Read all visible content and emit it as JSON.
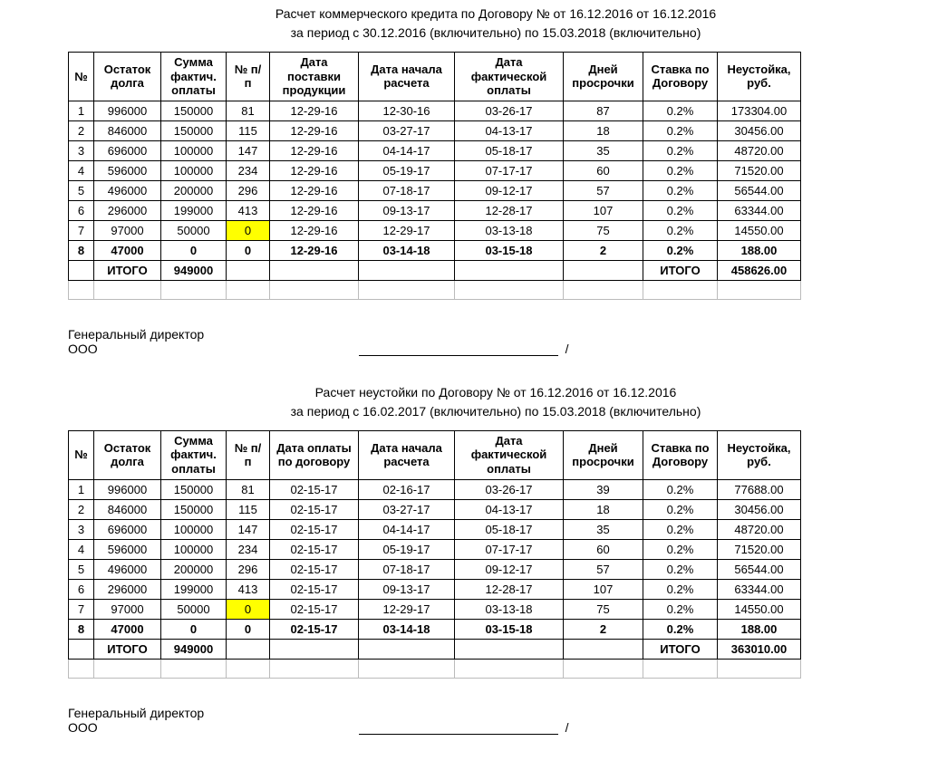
{
  "section1": {
    "title1": "Расчет коммерческого кредита по Договору № от 16.12.2016 от 16.12.2016",
    "title2": "за период с 30.12.2016 (включительно) по 15.03.2018 (включительно)",
    "headers": {
      "num": "№",
      "ostatok": "Остаток долга",
      "summa": "Сумма фактич. оплаты",
      "npp": "№ п/п",
      "date_post": "Дата поставки продукции",
      "date_nach": "Дата начала расчета",
      "date_fact": "Дата фактической оплаты",
      "days": "Дней просрочки",
      "rate": "Ставка по Договору",
      "penalty": "Неустойка, руб."
    },
    "rows": [
      {
        "n": "1",
        "ost": "996000",
        "sum": "150000",
        "npp": "81",
        "d1": "12-29-16",
        "d2": "12-30-16",
        "d3": "03-26-17",
        "days": "87",
        "rate": "0.2%",
        "pen": "173304.00"
      },
      {
        "n": "2",
        "ost": "846000",
        "sum": "150000",
        "npp": "115",
        "d1": "12-29-16",
        "d2": "03-27-17",
        "d3": "04-13-17",
        "days": "18",
        "rate": "0.2%",
        "pen": "30456.00"
      },
      {
        "n": "3",
        "ost": "696000",
        "sum": "100000",
        "npp": "147",
        "d1": "12-29-16",
        "d2": "04-14-17",
        "d3": "05-18-17",
        "days": "35",
        "rate": "0.2%",
        "pen": "48720.00"
      },
      {
        "n": "4",
        "ost": "596000",
        "sum": "100000",
        "npp": "234",
        "d1": "12-29-16",
        "d2": "05-19-17",
        "d3": "07-17-17",
        "days": "60",
        "rate": "0.2%",
        "pen": "71520.00"
      },
      {
        "n": "5",
        "ost": "496000",
        "sum": "200000",
        "npp": "296",
        "d1": "12-29-16",
        "d2": "07-18-17",
        "d3": "09-12-17",
        "days": "57",
        "rate": "0.2%",
        "pen": "56544.00"
      },
      {
        "n": "6",
        "ost": "296000",
        "sum": "199000",
        "npp": "413",
        "d1": "12-29-16",
        "d2": "09-13-17",
        "d3": "12-28-17",
        "days": "107",
        "rate": "0.2%",
        "pen": "63344.00"
      },
      {
        "n": "7",
        "ost": "97000",
        "sum": "50000",
        "npp": "0",
        "d1": "12-29-16",
        "d2": "12-29-17",
        "d3": "03-13-18",
        "days": "75",
        "rate": "0.2%",
        "pen": "14550.00",
        "hl": true
      }
    ],
    "boldrow": {
      "n": "8",
      "ost": "47000",
      "sum": "0",
      "npp": "0",
      "d1": "12-29-16",
      "d2": "03-14-18",
      "d3": "03-15-18",
      "days": "2",
      "rate": "0.2%",
      "pen": "188.00"
    },
    "itogo_label": "ИТОГО",
    "itogo_sum": "949000",
    "itogo_label2": "ИТОГО",
    "itogo_pen": "458626.00"
  },
  "sign": {
    "line1": "Генеральный директор",
    "line2": "ООО",
    "slash": "/"
  },
  "section2": {
    "title1": "Расчет неустойки по Договору № от 16.12.2016 от 16.12.2016",
    "title2": "за период с 16.02.2017 (включительно) по 15.03.2018 (включительно)",
    "headers": {
      "num": "№",
      "ostatok": "Остаток долга",
      "summa": "Сумма фактич. оплаты",
      "npp": "№ п/п",
      "date_post": "Дата оплаты по договору",
      "date_nach": "Дата начала расчета",
      "date_fact": "Дата фактической оплаты",
      "days": "Дней просрочки",
      "rate": "Ставка по Договору",
      "penalty": "Неустойка, руб."
    },
    "rows": [
      {
        "n": "1",
        "ost": "996000",
        "sum": "150000",
        "npp": "81",
        "d1": "02-15-17",
        "d2": "02-16-17",
        "d3": "03-26-17",
        "days": "39",
        "rate": "0.2%",
        "pen": "77688.00"
      },
      {
        "n": "2",
        "ost": "846000",
        "sum": "150000",
        "npp": "115",
        "d1": "02-15-17",
        "d2": "03-27-17",
        "d3": "04-13-17",
        "days": "18",
        "rate": "0.2%",
        "pen": "30456.00"
      },
      {
        "n": "3",
        "ost": "696000",
        "sum": "100000",
        "npp": "147",
        "d1": "02-15-17",
        "d2": "04-14-17",
        "d3": "05-18-17",
        "days": "35",
        "rate": "0.2%",
        "pen": "48720.00"
      },
      {
        "n": "4",
        "ost": "596000",
        "sum": "100000",
        "npp": "234",
        "d1": "02-15-17",
        "d2": "05-19-17",
        "d3": "07-17-17",
        "days": "60",
        "rate": "0.2%",
        "pen": "71520.00"
      },
      {
        "n": "5",
        "ost": "496000",
        "sum": "200000",
        "npp": "296",
        "d1": "02-15-17",
        "d2": "07-18-17",
        "d3": "09-12-17",
        "days": "57",
        "rate": "0.2%",
        "pen": "56544.00"
      },
      {
        "n": "6",
        "ost": "296000",
        "sum": "199000",
        "npp": "413",
        "d1": "02-15-17",
        "d2": "09-13-17",
        "d3": "12-28-17",
        "days": "107",
        "rate": "0.2%",
        "pen": "63344.00"
      },
      {
        "n": "7",
        "ost": "97000",
        "sum": "50000",
        "npp": "0",
        "d1": "02-15-17",
        "d2": "12-29-17",
        "d3": "03-13-18",
        "days": "75",
        "rate": "0.2%",
        "pen": "14550.00",
        "hl": true
      }
    ],
    "boldrow": {
      "n": "8",
      "ost": "47000",
      "sum": "0",
      "npp": "0",
      "d1": "02-15-17",
      "d2": "03-14-18",
      "d3": "03-15-18",
      "days": "2",
      "rate": "0.2%",
      "pen": "188.00"
    },
    "itogo_label": "ИТОГО",
    "itogo_sum": "949000",
    "itogo_label2": "ИТОГО",
    "itogo_pen": "363010.00"
  },
  "styling": {
    "highlight_color": "#ffff00",
    "border_color": "#000000",
    "background": "#ffffff",
    "font_family": "Arial",
    "base_fontsize": 13,
    "title_fontsize": 14
  }
}
